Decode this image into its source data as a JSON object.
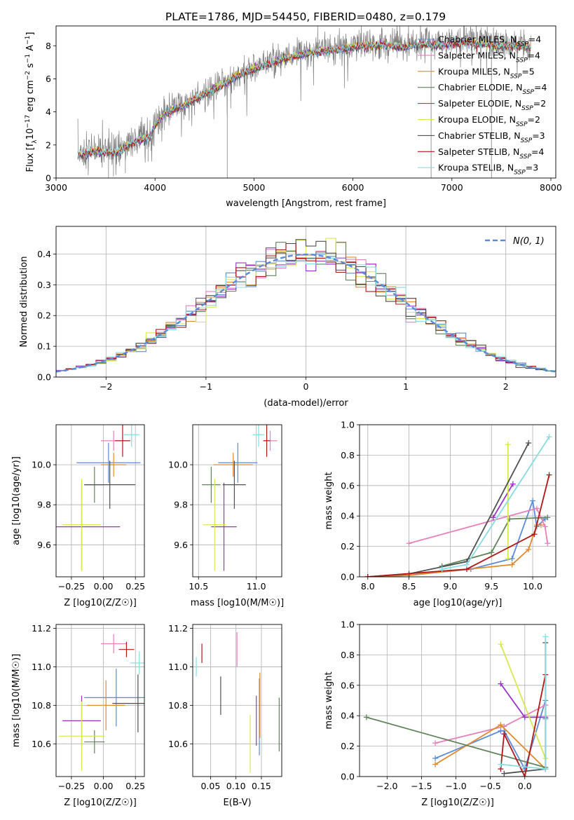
{
  "figure_title": "PLATE=1786, MJD=54450, FIBERID=0480, z=0.179",
  "colors": {
    "Chabrier MILES": "#5b8bd8",
    "Salpeter MILES": "#e87fbd",
    "Kroupa MILES": "#e08a2c",
    "Chabrier ELODIE": "#62845c",
    "Salpeter ELODIE": "#9933c8",
    "Kroupa ELODIE": "#d8e84c",
    "Chabrier STELIB": "#505050",
    "Salpeter STELIB": "#b01818",
    "Kroupa STELIB": "#86dce0",
    "data": "#7f7f7f",
    "normal": "#5b8bd8",
    "grid": "#b0b0b0"
  },
  "chart_data": [
    {
      "id": "spectrum",
      "type": "line",
      "title": "PLATE=1786, MJD=54450, FIBERID=0480, z=0.179",
      "xlabel": "wavelength [Angstrom, rest frame]",
      "ylabel": "Flux [f_λ 10^-17 erg cm^-2 s^-1 A^-1]",
      "xlim": [
        3000,
        8050
      ],
      "ylim": [
        0,
        9.2
      ],
      "xticks": [
        3000,
        4000,
        5000,
        6000,
        7000,
        8000
      ],
      "yticks": [
        0,
        2,
        4,
        6,
        8
      ],
      "grid": false,
      "legend_position": "right",
      "data_series": "observed spectrum (grey)",
      "continuum_x": [
        3220,
        3400,
        3600,
        3800,
        3950,
        4000,
        4100,
        4300,
        4500,
        4700,
        4900,
        5100,
        5300,
        5500,
        5700,
        5900,
        6100,
        6300,
        6500,
        6700,
        6900,
        7100,
        7300,
        7500,
        7700,
        7800
      ],
      "continuum_y": [
        1.45,
        1.75,
        1.6,
        2.3,
        2.6,
        3.3,
        4.0,
        4.5,
        5.2,
        5.8,
        6.5,
        6.9,
        7.3,
        7.6,
        7.8,
        7.9,
        8.1,
        8.15,
        8.0,
        8.2,
        8.1,
        8.3,
        8.2,
        8.1,
        8.1,
        8.0
      ],
      "series": [
        {
          "name": "Chabrier MILES",
          "ssp": 4
        },
        {
          "name": "Salpeter MILES",
          "ssp": 4
        },
        {
          "name": "Kroupa MILES",
          "ssp": 5
        },
        {
          "name": "Chabrier ELODIE",
          "ssp": 4
        },
        {
          "name": "Salpeter ELODIE",
          "ssp": 2
        },
        {
          "name": "Kroupa ELODIE",
          "ssp": 2
        },
        {
          "name": "Chabrier STELIB",
          "ssp": 3
        },
        {
          "name": "Salpeter STELIB",
          "ssp": 4
        },
        {
          "name": "Kroupa STELIB",
          "ssp": 3
        }
      ]
    },
    {
      "id": "residuals",
      "type": "step",
      "xlabel": "(data-model)/error",
      "ylabel": "Normed distribution",
      "xlim": [
        -2.5,
        2.5
      ],
      "ylim": [
        0,
        0.49
      ],
      "xticks": [
        -2,
        -1,
        0,
        1,
        2
      ],
      "yticks": [
        0.0,
        0.1,
        0.2,
        0.3,
        0.4
      ],
      "grid": true,
      "legend_position": "top-right",
      "normal_label": "N(0, 1)",
      "bin_width": 0.1
    },
    {
      "id": "age_vs_Z",
      "type": "errorbar",
      "xlabel": "Z [log10(Z/Z☉)]",
      "ylabel": "age  [log10(age/yr)]",
      "xlim": [
        -0.37,
        0.32
      ],
      "ylim": [
        9.44,
        10.2
      ],
      "xticks": [
        -0.25,
        0.0,
        0.25
      ],
      "xtick_labels": [
        "−0.25",
        "0.00",
        "0.25"
      ],
      "yticks": [
        9.6,
        9.8,
        10.0
      ],
      "grid": true,
      "points": [
        {
          "series": "Chabrier MILES",
          "x": 0.04,
          "xerr": 0.25,
          "y": 10.01,
          "yerr": 0.1
        },
        {
          "series": "Salpeter MILES",
          "x": 0.08,
          "xerr": 0.1,
          "y": 10.12,
          "yerr": 0.05
        },
        {
          "series": "Kroupa MILES",
          "x": 0.08,
          "xerr": 0.1,
          "y": 10.0,
          "yerr": 0.06
        },
        {
          "series": "Chabrier ELODIE",
          "x": -0.07,
          "xerr": 0.08,
          "y": 9.9,
          "yerr": 0.09
        },
        {
          "series": "Salpeter ELODIE",
          "x": -0.17,
          "xerr": 0.3,
          "y": 9.69,
          "yerr": 0.22
        },
        {
          "series": "Kroupa ELODIE",
          "x": -0.17,
          "xerr": 0.15,
          "y": 9.7,
          "yerr": 0.23
        },
        {
          "series": "Chabrier STELIB",
          "x": 0.05,
          "xerr": 0.2,
          "y": 9.9,
          "yerr": 0.12
        },
        {
          "series": "Salpeter STELIB",
          "x": 0.15,
          "xerr": 0.06,
          "y": 10.12,
          "yerr": 0.08
        },
        {
          "series": "Kroupa STELIB",
          "x": 0.22,
          "xerr": 0.06,
          "y": 10.15,
          "yerr": 0.06
        }
      ]
    },
    {
      "id": "age_vs_mass",
      "type": "errorbar",
      "xlabel": "mass [log10(M/M☉)]",
      "ylabel": "",
      "xlim": [
        10.45,
        11.22
      ],
      "ylim": [
        9.44,
        10.2
      ],
      "xticks": [
        10.5,
        11.0
      ],
      "yticks": [
        9.6,
        9.8,
        10.0
      ],
      "grid": true,
      "points": [
        {
          "series": "Chabrier MILES",
          "x": 10.84,
          "xerr": 0.17,
          "y": 10.01,
          "yerr": 0.1
        },
        {
          "series": "Salpeter MILES",
          "x": 11.12,
          "xerr": 0.06,
          "y": 10.12,
          "yerr": 0.05
        },
        {
          "series": "Kroupa MILES",
          "x": 10.8,
          "xerr": 0.17,
          "y": 10.0,
          "yerr": 0.06
        },
        {
          "series": "Chabrier ELODIE",
          "x": 10.61,
          "xerr": 0.08,
          "y": 9.9,
          "yerr": 0.09
        },
        {
          "series": "Salpeter ELODIE",
          "x": 10.72,
          "xerr": 0.11,
          "y": 9.69,
          "yerr": 0.22
        },
        {
          "series": "Kroupa ELODIE",
          "x": 10.64,
          "xerr": 0.1,
          "y": 9.7,
          "yerr": 0.23
        },
        {
          "series": "Chabrier STELIB",
          "x": 10.81,
          "xerr": 0.1,
          "y": 9.9,
          "yerr": 0.12
        },
        {
          "series": "Salpeter STELIB",
          "x": 11.09,
          "xerr": 0.03,
          "y": 10.12,
          "yerr": 0.08
        },
        {
          "series": "Kroupa STELIB",
          "x": 11.02,
          "xerr": 0.05,
          "y": 10.15,
          "yerr": 0.06
        }
      ]
    },
    {
      "id": "weights_vs_age",
      "type": "line",
      "xlabel": "age  [log10(age/yr)]",
      "ylabel": "mass weight",
      "xlim": [
        7.9,
        10.28
      ],
      "ylim": [
        0.0,
        1.0
      ],
      "xticks": [
        8.0,
        8.5,
        9.0,
        9.5,
        10.0
      ],
      "yticks": [
        0.0,
        0.2,
        0.4,
        0.6,
        0.8,
        1.0
      ],
      "grid": true,
      "series": [
        {
          "name": "Chabrier MILES",
          "x": [
            8.0,
            8.5,
            9.25,
            9.75,
            10.0,
            10.05,
            10.15
          ],
          "y": [
            0.0,
            0.01,
            0.05,
            0.12,
            0.5,
            0.33,
            0.38
          ]
        },
        {
          "name": "Salpeter MILES",
          "x": [
            8.5,
            10.05,
            10.15,
            10.18
          ],
          "y": [
            0.22,
            0.45,
            0.33,
            0.22
          ]
        },
        {
          "name": "Kroupa MILES",
          "x": [
            8.0,
            8.5,
            9.75,
            9.95,
            10.05,
            10.1
          ],
          "y": [
            0.0,
            0.01,
            0.08,
            0.18,
            0.34,
            0.34
          ]
        },
        {
          "name": "Chabrier ELODIE",
          "x": [
            8.9,
            9.5,
            9.72,
            10.18
          ],
          "y": [
            0.07,
            0.16,
            0.38,
            0.39
          ]
        },
        {
          "name": "Salpeter ELODIE",
          "x": [
            9.52,
            9.76
          ],
          "y": [
            0.39,
            0.61
          ]
        },
        {
          "name": "Kroupa ELODIE",
          "x": [
            9.7,
            9.7
          ],
          "y": [
            0.12,
            0.87
          ]
        },
        {
          "name": "Chabrier STELIB",
          "x": [
            8.0,
            8.5,
            9.2,
            9.95
          ],
          "y": [
            0.0,
            0.02,
            0.1,
            0.88
          ]
        },
        {
          "name": "Salpeter STELIB",
          "x": [
            8.0,
            9.2,
            10.02,
            10.2
          ],
          "y": [
            0.0,
            0.05,
            0.28,
            0.67
          ]
        },
        {
          "name": "Kroupa STELIB",
          "x": [
            8.9,
            9.2,
            10.2
          ],
          "y": [
            0.05,
            0.08,
            0.92
          ]
        }
      ]
    },
    {
      "id": "mass_vs_Z",
      "type": "errorbar",
      "xlabel": "Z [log10(Z/Z☉)]",
      "ylabel": "mass [log10(M/M☉)]",
      "xlim": [
        -0.37,
        0.32
      ],
      "ylim": [
        10.43,
        11.22
      ],
      "xticks": [
        -0.25,
        0.0,
        0.25
      ],
      "xtick_labels": [
        "−0.25",
        "0.00",
        "0.25"
      ],
      "yticks": [
        10.6,
        10.8,
        11.0,
        11.2
      ],
      "grid": true,
      "points": [
        {
          "series": "Chabrier MILES",
          "x": 0.1,
          "xerr": 0.25,
          "y": 10.84,
          "yerr": 0.15
        },
        {
          "series": "Salpeter MILES",
          "x": 0.08,
          "xerr": 0.1,
          "y": 11.12,
          "yerr": 0.05
        },
        {
          "series": "Kroupa MILES",
          "x": 0.02,
          "xerr": 0.15,
          "y": 10.8,
          "yerr": 0.13
        },
        {
          "series": "Chabrier ELODIE",
          "x": -0.07,
          "xerr": 0.08,
          "y": 10.61,
          "yerr": 0.06
        },
        {
          "series": "Salpeter ELODIE",
          "x": -0.17,
          "xerr": 0.15,
          "y": 10.72,
          "yerr": 0.13
        },
        {
          "series": "Kroupa ELODIE",
          "x": -0.17,
          "xerr": 0.18,
          "y": 10.64,
          "yerr": 0.18
        },
        {
          "series": "Chabrier STELIB",
          "x": 0.27,
          "xerr": 0.2,
          "y": 10.81,
          "yerr": 0.15
        },
        {
          "series": "Salpeter STELIB",
          "x": 0.18,
          "xerr": 0.06,
          "y": 11.09,
          "yerr": 0.04
        },
        {
          "series": "Kroupa STELIB",
          "x": 0.28,
          "xerr": 0.07,
          "y": 11.02,
          "yerr": 0.06
        }
      ]
    },
    {
      "id": "mass_vs_ebv",
      "type": "errorbar",
      "xlabel": "E(B-V)",
      "ylabel": "",
      "xlim": [
        0.015,
        0.19
      ],
      "ylim": [
        10.43,
        11.22
      ],
      "xticks": [
        0.05,
        0.1,
        0.15
      ],
      "yticks": [
        10.6,
        10.8,
        11.0,
        11.2
      ],
      "grid": true,
      "points": [
        {
          "series": "Chabrier MILES",
          "x": 0.146,
          "xerr": 0,
          "y": 10.74,
          "yerr": 0.2
        },
        {
          "series": "Salpeter MILES",
          "x": 0.102,
          "xerr": 0,
          "y": 11.09,
          "yerr": 0.09
        },
        {
          "series": "Kroupa MILES",
          "x": 0.147,
          "xerr": 0,
          "y": 10.8,
          "yerr": 0.17
        },
        {
          "series": "Chabrier ELODIE",
          "x": 0.185,
          "xerr": 0,
          "y": 10.7,
          "yerr": 0.14
        },
        {
          "series": "Salpeter ELODIE",
          "x": 0.14,
          "xerr": 0,
          "y": 10.72,
          "yerr": 0.13
        },
        {
          "series": "Kroupa ELODIE",
          "x": 0.128,
          "xerr": 0,
          "y": 10.6,
          "yerr": 0.15
        },
        {
          "series": "Chabrier STELIB",
          "x": 0.07,
          "xerr": 0,
          "y": 10.85,
          "yerr": 0.1
        },
        {
          "series": "Salpeter STELIB",
          "x": 0.033,
          "xerr": 0,
          "y": 11.07,
          "yerr": 0.05
        },
        {
          "series": "Kroupa STELIB",
          "x": 0.022,
          "xerr": 0,
          "y": 11.0,
          "yerr": 0.05
        }
      ]
    },
    {
      "id": "weights_vs_Z",
      "type": "line",
      "xlabel": "Z [log10(Z/Z☉)]",
      "ylabel": "mass weight",
      "xlim": [
        -2.4,
        0.45
      ],
      "ylim": [
        0.0,
        1.0
      ],
      "xticks": [
        -2.0,
        -1.5,
        -1.0,
        -0.5,
        0.0
      ],
      "xtick_labels": [
        "−2.0",
        "−1.5",
        "−1.0",
        "−0.5",
        "0.0"
      ],
      "yticks": [
        0.0,
        0.2,
        0.4,
        0.6,
        0.8,
        1.0
      ],
      "grid": true,
      "series": [
        {
          "name": "Chabrier MILES",
          "x": [
            -1.3,
            -0.35,
            -0.3,
            0.0,
            0.3,
            0.3
          ],
          "y": [
            0.12,
            0.3,
            0.3,
            0.05,
            0.5,
            0.38
          ]
        },
        {
          "name": "Salpeter MILES",
          "x": [
            -1.3,
            -0.3,
            0.3
          ],
          "y": [
            0.22,
            0.33,
            0.47
          ]
        },
        {
          "name": "Kroupa MILES",
          "x": [
            -1.3,
            -0.35,
            0.3
          ],
          "y": [
            0.08,
            0.34,
            0.05
          ]
        },
        {
          "name": "Chabrier ELODIE",
          "x": [
            -2.3,
            0.3
          ],
          "y": [
            0.39,
            0.06
          ]
        },
        {
          "name": "Salpeter ELODIE",
          "x": [
            -0.35,
            0.0,
            0.3
          ],
          "y": [
            0.61,
            0.39,
            0.39
          ]
        },
        {
          "name": "Kroupa ELODIE",
          "x": [
            -0.35,
            0.3
          ],
          "y": [
            0.87,
            0.12
          ]
        },
        {
          "name": "Chabrier STELIB",
          "x": [
            -0.3,
            0.3,
            0.3
          ],
          "y": [
            0.02,
            0.05,
            0.88
          ]
        },
        {
          "name": "Salpeter STELIB",
          "x": [
            -0.35,
            -0.3,
            0.0,
            0.3
          ],
          "y": [
            0.05,
            0.28,
            0.0,
            0.67
          ]
        },
        {
          "name": "Kroupa STELIB",
          "x": [
            -0.35,
            0.3,
            0.3
          ],
          "y": [
            0.08,
            0.05,
            0.92
          ]
        }
      ]
    }
  ]
}
